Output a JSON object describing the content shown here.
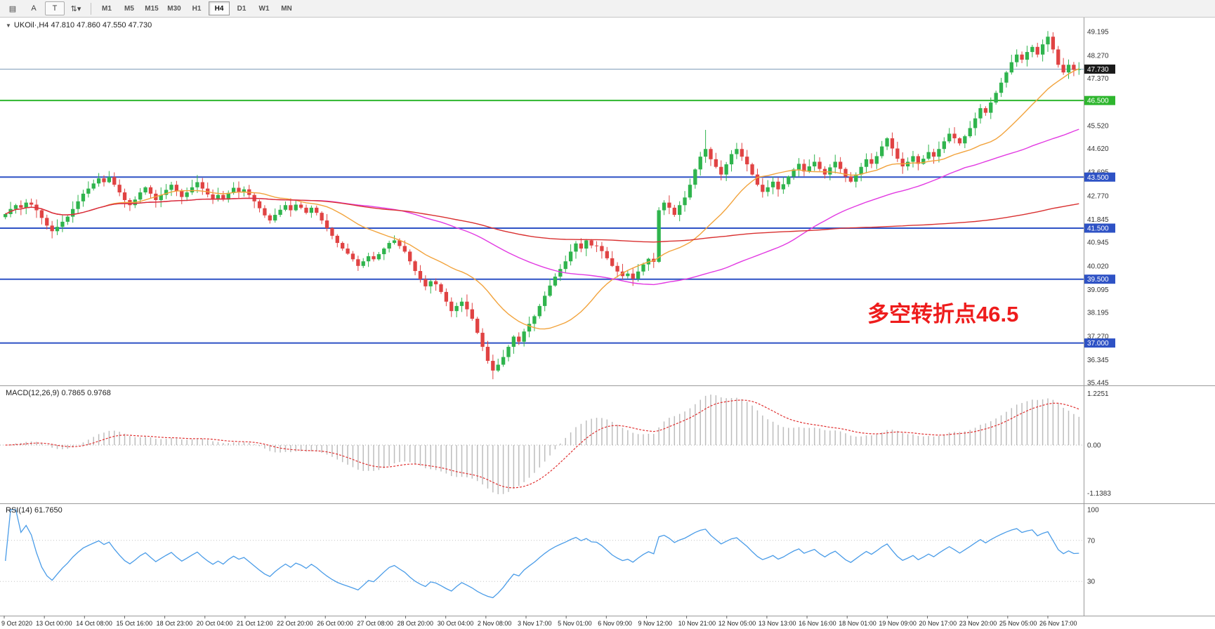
{
  "toolbar": {
    "tools": [
      {
        "name": "chart-mode-icon",
        "glyph": "▤",
        "boxed": false
      },
      {
        "name": "cursor-tool-icon",
        "glyph": "A",
        "boxed": false
      },
      {
        "name": "text-tool-icon",
        "glyph": "T",
        "boxed": true
      },
      {
        "name": "indicator-dropdown-icon",
        "glyph": "⇅▾",
        "boxed": false
      }
    ],
    "timeframes": [
      "M1",
      "M5",
      "M15",
      "M30",
      "H1",
      "H4",
      "D1",
      "W1",
      "MN"
    ],
    "active_timeframe": "H4"
  },
  "main_chart": {
    "title": "UKOil·,H4 47.810 47.860 47.550 47.730",
    "annotation": {
      "text": "多空转折点46.5",
      "color": "#ee1c1c"
    }
  },
  "chart_data": {
    "type": "candlestick",
    "symbol": "UKOil",
    "timeframe": "H4",
    "ohlc_display": {
      "open": "47.810",
      "high": "47.860",
      "low": "47.550",
      "close": "47.730"
    },
    "ylim": [
      35.445,
      49.195
    ],
    "up_color": "#2fb44d",
    "down_color": "#e04343",
    "closes": [
      42.05,
      42.25,
      42.4,
      42.3,
      42.5,
      42.42,
      42.2,
      41.9,
      41.6,
      41.38,
      41.55,
      41.75,
      41.95,
      42.25,
      42.55,
      42.85,
      43.05,
      43.25,
      43.45,
      43.3,
      43.5,
      43.2,
      42.9,
      42.6,
      42.4,
      42.62,
      42.9,
      43.1,
      42.85,
      42.6,
      42.8,
      43.0,
      43.2,
      42.95,
      42.72,
      42.9,
      43.1,
      43.3,
      43.05,
      42.82,
      42.62,
      42.8,
      42.62,
      42.88,
      43.08,
      42.92,
      43.02,
      42.8,
      42.55,
      42.28,
      42.0,
      41.8,
      42.02,
      42.22,
      42.4,
      42.2,
      42.42,
      42.3,
      42.1,
      42.3,
      42.1,
      41.8,
      41.5,
      41.2,
      40.92,
      40.7,
      40.5,
      40.28,
      40.02,
      40.2,
      40.4,
      40.28,
      40.48,
      40.7,
      40.92,
      41.02,
      40.8,
      40.58,
      40.2,
      39.82,
      39.5,
      39.22,
      39.42,
      39.3,
      39.0,
      38.62,
      38.25,
      38.45,
      38.62,
      38.32,
      37.95,
      37.4,
      36.85,
      36.3,
      35.92,
      36.15,
      36.45,
      36.85,
      37.25,
      37.05,
      37.45,
      37.75,
      38.05,
      38.45,
      38.85,
      39.25,
      39.6,
      39.9,
      40.2,
      40.58,
      40.9,
      40.7,
      41.02,
      40.82,
      40.8,
      40.6,
      40.32,
      40.02,
      39.8,
      39.62,
      39.72,
      39.52,
      39.8,
      40.08,
      40.3,
      40.18,
      42.2,
      42.5,
      42.3,
      42.02,
      42.4,
      42.7,
      43.2,
      43.8,
      44.3,
      44.6,
      44.2,
      43.9,
      43.6,
      44.0,
      44.4,
      44.6,
      44.3,
      44.0,
      43.6,
      43.2,
      42.92,
      43.1,
      43.32,
      43.02,
      43.22,
      43.52,
      43.8,
      44.02,
      43.72,
      43.92,
      44.1,
      43.82,
      43.6,
      43.88,
      44.1,
      43.82,
      43.52,
      43.32,
      43.6,
      43.9,
      44.2,
      44.02,
      44.32,
      44.7,
      45.02,
      44.62,
      44.22,
      43.92,
      44.1,
      44.32,
      44.02,
      44.22,
      44.48,
      44.3,
      44.6,
      44.9,
      45.2,
      45.02,
      44.82,
      45.1,
      45.42,
      45.8,
      46.2,
      46.02,
      46.42,
      46.8,
      47.2,
      47.6,
      48.0,
      48.3,
      48.1,
      48.4,
      48.6,
      48.3,
      48.7,
      49.0,
      48.5,
      47.9,
      47.6,
      47.9,
      47.7,
      47.73
    ],
    "wick_spikes_high": {
      "135": 45.35,
      "201": 49.22
    },
    "wick_spikes_low": {
      "94": 35.58
    },
    "moving_averages": [
      {
        "period": 20,
        "color": "#f2a33c"
      },
      {
        "period": 60,
        "color": "#e23ae2"
      },
      {
        "period": 150,
        "color": "#d93030"
      }
    ],
    "horizontal_levels": [
      {
        "price": 47.73,
        "color": "#7f9db9",
        "width": 1
      },
      {
        "price": 46.5,
        "color": "#2eb62e",
        "width": 2
      },
      {
        "price": 43.5,
        "color": "#2e52c5",
        "width": 2
      },
      {
        "price": 41.5,
        "color": "#2e52c5",
        "width": 2
      },
      {
        "price": 39.5,
        "color": "#2e52c5",
        "width": 2
      },
      {
        "price": 37.0,
        "color": "#2e52c5",
        "width": 2
      }
    ],
    "price_axis_ticks": [
      "49.195",
      "48.270",
      "47.370",
      "45.520",
      "44.620",
      "43.695",
      "42.770",
      "41.845",
      "40.945",
      "40.020",
      "39.095",
      "38.195",
      "37.270",
      "36.345",
      "35.445"
    ],
    "price_tags": [
      {
        "label": "47.730",
        "price": 47.73,
        "bg": "#1a1a1a"
      },
      {
        "label": "46.500",
        "price": 46.5,
        "bg": "#2eb62e"
      },
      {
        "label": "43.500",
        "price": 43.5,
        "bg": "#2e52c5"
      },
      {
        "label": "41.500",
        "price": 41.5,
        "bg": "#2e52c5"
      },
      {
        "label": "39.500",
        "price": 39.5,
        "bg": "#2e52c5"
      },
      {
        "label": "37.000",
        "price": 37.0,
        "bg": "#2e52c5"
      }
    ],
    "time_labels": [
      "9 Oct 2020",
      "13 Oct 00:00",
      "14 Oct 08:00",
      "15 Oct 16:00",
      "18 Oct 23:00",
      "20 Oct 04:00",
      "21 Oct 12:00",
      "22 Oct 20:00",
      "26 Oct 00:00",
      "27 Oct 08:00",
      "28 Oct 20:00",
      "30 Oct 04:00",
      "2 Nov 08:00",
      "3 Nov 17:00",
      "5 Nov 01:00",
      "6 Nov 09:00",
      "9 Nov 12:00",
      "10 Nov 21:00",
      "12 Nov 05:00",
      "13 Nov 13:00",
      "16 Nov 16:00",
      "18 Nov 01:00",
      "19 Nov 09:00",
      "20 Nov 17:00",
      "23 Nov 20:00",
      "25 Nov 05:00",
      "26 Nov 17:00"
    ],
    "indicators": [
      {
        "name": "MACD",
        "label": "MACD(12,26,9) 0.7865 0.9768",
        "params": [
          12,
          26,
          9
        ],
        "values": [
          "0.7865",
          "0.9768"
        ],
        "axis": [
          "1.2251",
          "0.00",
          "-1.1383"
        ],
        "histogram_color": "#bdbdbd",
        "signal_color": "#e03030"
      },
      {
        "name": "RSI",
        "label": "RSI(14) 61.7650",
        "period": 14,
        "value": "61.7650",
        "axis": [
          "100",
          "70",
          "30"
        ],
        "levels": [
          70,
          30
        ],
        "line_color": "#4a9ce8"
      }
    ]
  }
}
